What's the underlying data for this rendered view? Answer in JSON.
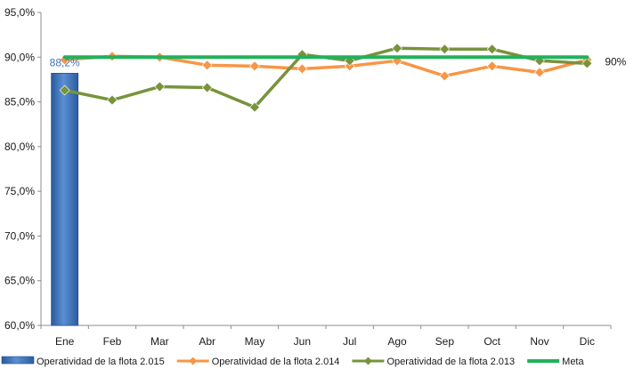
{
  "chart_data": {
    "type": "bar",
    "categories": [
      "Ene",
      "Feb",
      "Mar",
      "Abr",
      "May",
      "Jun",
      "Jul",
      "Ago",
      "Sep",
      "Oct",
      "Nov",
      "Dic"
    ],
    "ylim": [
      60,
      95
    ],
    "yticks": [
      "60,0%",
      "65,0%",
      "70,0%",
      "75,0%",
      "80,0%",
      "85,0%",
      "90,0%",
      "95,0%"
    ],
    "ytick_values": [
      60,
      65,
      70,
      75,
      80,
      85,
      90,
      95
    ],
    "grid": false,
    "legend_position": "bottom",
    "series": [
      {
        "name": "Operatividad de la flota 2.015",
        "type": "bar",
        "color": "#3f73b8",
        "values": [
          88.2,
          null,
          null,
          null,
          null,
          null,
          null,
          null,
          null,
          null,
          null,
          null
        ],
        "data_labels": [
          "88,2%"
        ]
      },
      {
        "name": "Operatividad de la flota 2.014",
        "type": "line",
        "marker": "diamond",
        "color": "#f79646",
        "values": [
          89.7,
          90.1,
          90.0,
          89.1,
          89.0,
          88.7,
          89.0,
          89.6,
          87.9,
          89.0,
          88.3,
          89.7
        ]
      },
      {
        "name": "Operatividad de la flota 2.013",
        "type": "line",
        "marker": "diamond",
        "color": "#77933c",
        "values": [
          86.3,
          85.2,
          86.7,
          86.6,
          84.4,
          90.3,
          89.6,
          91.0,
          90.9,
          90.9,
          89.6,
          89.3
        ]
      },
      {
        "name": "Meta",
        "type": "line",
        "marker": "none",
        "color": "#1fb25a",
        "values": [
          90,
          90,
          90,
          90,
          90,
          90,
          90,
          90,
          90,
          90,
          90,
          90
        ],
        "end_label": "90%"
      }
    ]
  }
}
